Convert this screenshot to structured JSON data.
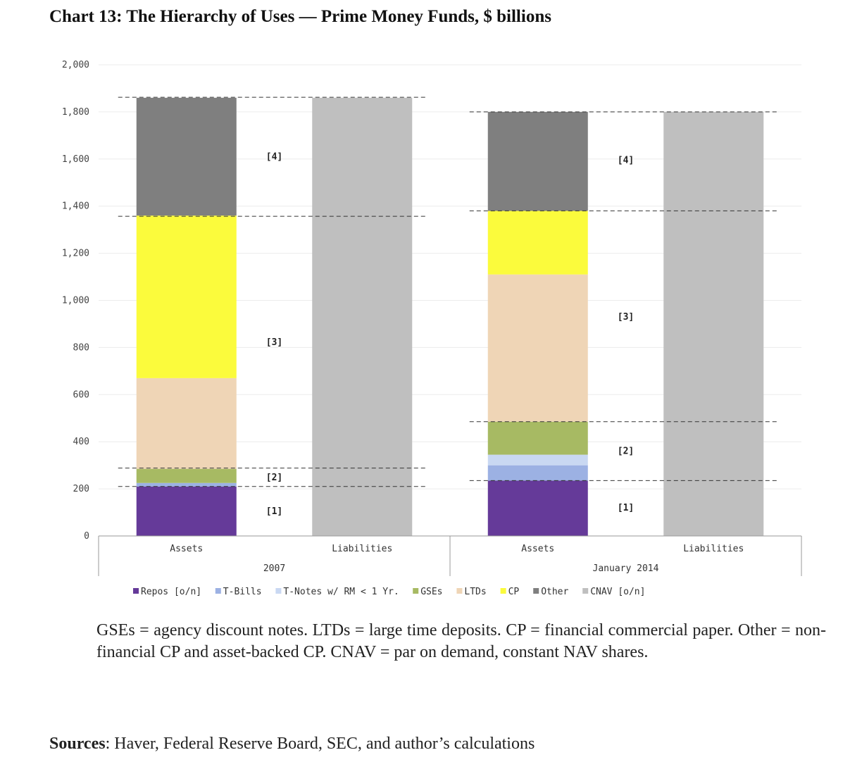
{
  "title": "Chart 13: The Hierarchy of Uses — Prime Money Funds, $ billions",
  "note": "GSEs = agency discount notes. LTDs = large time deposits. CP = financial commercial paper. Other = non-financial CP and asset-backed CP. CNAV = par on demand, constant NAV shares.",
  "sources": {
    "label": "Sources",
    "text": ": Haver, Federal Reserve Board, SEC, and author’s calculations"
  },
  "chart_data": {
    "type": "bar",
    "stacked": true,
    "ylim": [
      0,
      2000
    ],
    "yticks": [
      0,
      200,
      400,
      600,
      800,
      1000,
      1200,
      1400,
      1600,
      1800,
      2000
    ],
    "ytick_labels": [
      "0",
      "200",
      "400",
      "600",
      "800",
      "1,000",
      "1,200",
      "1,400",
      "1,600",
      "1,800",
      "2,000"
    ],
    "grid": true,
    "legend_position": "bottom",
    "groups": [
      {
        "label": "2007",
        "bars": [
          {
            "label": "Assets",
            "values": [
              210,
              15,
              0,
              60,
              385,
              690,
              500,
              0
            ]
          },
          {
            "label": "Liabilities",
            "values": [
              0,
              0,
              0,
              0,
              0,
              0,
              0,
              1860
            ]
          }
        ],
        "tiers": [
          {
            "label": "[1]",
            "value": 105
          },
          {
            "label": "[2]",
            "value": 248
          },
          {
            "label": "[3]",
            "value": 822
          },
          {
            "label": "[4]",
            "value": 1610
          }
        ],
        "dashed_levels": [
          210,
          288,
          1357,
          1862
        ]
      },
      {
        "label": "January 2014",
        "bars": [
          {
            "label": "Assets",
            "values": [
              235,
              65,
              45,
              140,
              625,
              270,
              420,
              0
            ]
          },
          {
            "label": "Liabilities",
            "values": [
              0,
              0,
              0,
              0,
              0,
              0,
              0,
              1800
            ]
          }
        ],
        "tiers": [
          {
            "label": "[1]",
            "value": 120
          },
          {
            "label": "[2]",
            "value": 360
          },
          {
            "label": "[3]",
            "value": 930
          },
          {
            "label": "[4]",
            "value": 1595
          }
        ],
        "dashed_levels": [
          235,
          485,
          1380,
          1800
        ]
      }
    ],
    "series": [
      {
        "name": "Repos [o/n]",
        "color": "#653a99"
      },
      {
        "name": "T-Bills",
        "color": "#9cb1e3"
      },
      {
        "name": "T-Notes w/ RM < 1 Yr.",
        "color": "#c9d8f2"
      },
      {
        "name": "GSEs",
        "color": "#a7ba63"
      },
      {
        "name": "LTDs",
        "color": "#efd5b6"
      },
      {
        "name": "CP",
        "color": "#fbfb3c"
      },
      {
        "name": "Other",
        "color": "#7f7f7f"
      },
      {
        "name": "CNAV [o/n]",
        "color": "#bfbfbf"
      }
    ]
  }
}
